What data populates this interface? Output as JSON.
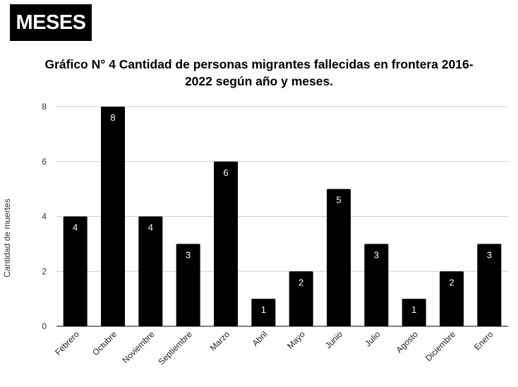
{
  "header": {
    "badge": "MESES"
  },
  "chart_data": {
    "type": "bar",
    "title_line1": "Gráfico N° 4 Cantidad de personas migrantes fallecidas en frontera 2016-",
    "title_line2": "2022 según año y meses.",
    "xlabel": "",
    "ylabel": "Cantidad de muertes",
    "ylim": [
      0,
      8
    ],
    "yticks": [
      0,
      2,
      4,
      6,
      8
    ],
    "grid": true,
    "categories": [
      "Febrero",
      "Octubre",
      "Noviembre",
      "Septiembre",
      "Marzo",
      "Abril",
      "Mayo",
      "Junio",
      "Julio",
      "Agosto",
      "Diciembre",
      "Enero"
    ],
    "values": [
      4,
      8,
      4,
      3,
      6,
      1,
      2,
      5,
      3,
      1,
      2,
      3
    ],
    "bar_color": "#000000",
    "label_color": "#ffffff",
    "grid_color": "#cccccc"
  }
}
